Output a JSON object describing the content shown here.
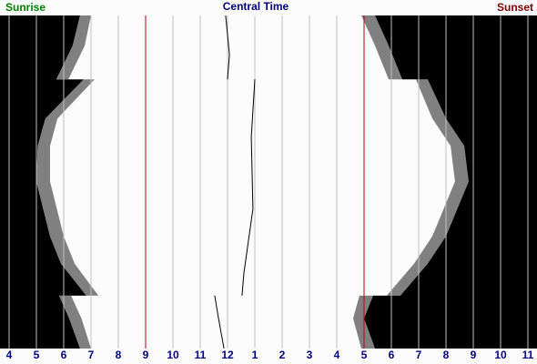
{
  "chart_data": {
    "type": "daylight",
    "title": "Central Time",
    "left_label": "Sunrise",
    "right_label": "Sunset",
    "days": [
      0,
      33,
      70,
      70,
      113,
      143,
      182,
      242,
      272,
      307,
      307,
      332,
      365
    ],
    "dawn": [
      6.6,
      6.33,
      5.73,
      6.73,
      5.33,
      5.05,
      5.0,
      5.5,
      5.9,
      6.83,
      5.83,
      6.2,
      6.6
    ],
    "sunrise": [
      7.0,
      6.77,
      6.17,
      7.13,
      5.77,
      5.5,
      5.5,
      6.0,
      6.4,
      7.27,
      6.27,
      6.65,
      7.0
    ],
    "sunset": [
      16.9,
      17.4,
      17.9,
      18.9,
      19.5,
      20.17,
      20.33,
      19.5,
      18.83,
      17.83,
      16.83,
      16.6,
      16.9
    ],
    "dusk": [
      17.4,
      17.9,
      18.4,
      19.33,
      20.0,
      20.67,
      20.83,
      20.0,
      19.33,
      18.33,
      17.33,
      17.0,
      17.4
    ],
    "noon": {
      "days": [
        0,
        43,
        70,
        null,
        70,
        133,
        212,
        282,
        307,
        null,
        307,
        332,
        365
      ],
      "values": [
        11.93,
        12.07,
        12.0,
        null,
        13.0,
        12.87,
        12.93,
        12.6,
        12.53,
        null,
        11.53,
        11.67,
        11.87
      ]
    },
    "xlim": [
      3.667,
      23.333
    ],
    "ylim": [
      0,
      365
    ],
    "xticks": [
      4,
      5,
      6,
      7,
      8,
      9,
      10,
      11,
      12,
      {
        "value": 13,
        "label": "1"
      },
      {
        "value": 14,
        "label": "2"
      },
      {
        "value": 15,
        "label": "3"
      },
      {
        "value": 16,
        "label": "4"
      },
      {
        "value": 17,
        "label": "5"
      },
      {
        "value": 18,
        "label": "6"
      },
      {
        "value": 19,
        "label": "7"
      },
      {
        "value": 20,
        "label": "8"
      },
      {
        "value": 21,
        "label": "9"
      },
      {
        "value": 22,
        "label": "10"
      },
      {
        "value": 23,
        "label": "11"
      }
    ],
    "highlight_hours": [
      9,
      17
    ],
    "colors": {
      "night": "#000000",
      "twilight": "#808080",
      "day": "#fcfcfc",
      "grid": "#c0c0c0",
      "highlight": "#c00000",
      "noon": "#000000",
      "ticks": "#000080",
      "title": "#000080",
      "left_label": "#008000",
      "right_label": "#800000"
    }
  }
}
